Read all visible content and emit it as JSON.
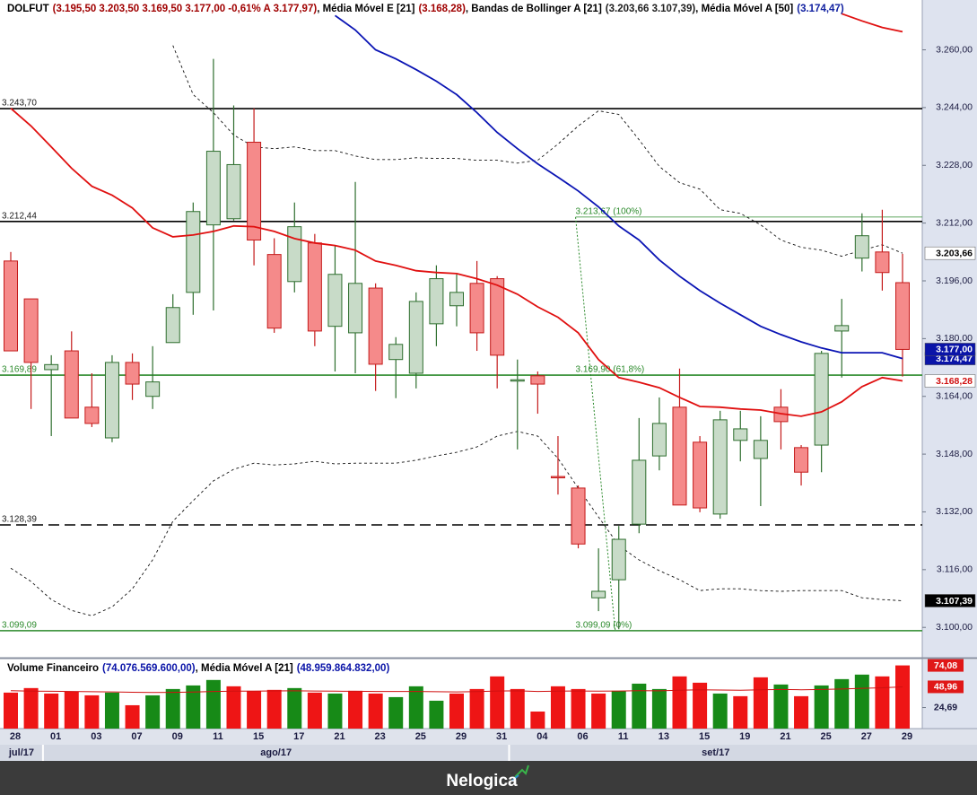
{
  "chart_data": [
    {
      "type": "candlestick",
      "title": "DOLFUT",
      "quote": "(3.195,50 3.203,50 3.169,50 3.177,00 -0,61% A 3.177,97)",
      "legend_separator": ", ",
      "categories": [
        "28",
        null,
        "01",
        null,
        "03",
        null,
        "07",
        null,
        "09",
        null,
        "11",
        null,
        "15",
        null,
        "17",
        null,
        "21",
        null,
        "23",
        null,
        "25",
        null,
        "29",
        null,
        "31",
        null,
        "04",
        null,
        "06",
        null,
        "11",
        null,
        "13",
        null,
        "15",
        null,
        "19",
        null,
        "21",
        null,
        "25",
        null,
        "27",
        null,
        "29"
      ],
      "months": [
        "jul/17",
        "ago/17",
        "set/17"
      ],
      "open": [
        3201.5,
        3191,
        3171.4,
        3176.6,
        3161,
        3152.5,
        3173.4,
        3164,
        3178.9,
        3192.8,
        3211.5,
        3213.2,
        3234.4,
        3203.3,
        3195.8,
        3206.5,
        3183.4,
        3181.6,
        3194,
        3174.2,
        3170.4,
        3184.1,
        3189.1,
        3195.3,
        3196.6,
        3168.4,
        3169.7,
        3141.8,
        3138.6,
        3108.2,
        3113.2,
        3128.6,
        3147.5,
        3161,
        3151.3,
        3131.4,
        3151.8,
        3146.8,
        3161,
        3149.8,
        3150.5,
        3182.1,
        3202.3,
        3204,
        3195.5
      ],
      "high": [
        3204,
        3191,
        3175.4,
        3182,
        3170.4,
        3175.4,
        3175.9,
        3177.9,
        3192.3,
        3217.7,
        3257.5,
        3244.6,
        3243.8,
        3207.8,
        3217.7,
        3209,
        3205.8,
        3223.4,
        3195.3,
        3180.4,
        3192.8,
        3200.3,
        3197.8,
        3201.5,
        3197.3,
        3174.2,
        3170.9,
        3153,
        3139.3,
        3121.9,
        3128.1,
        3158,
        3163.7,
        3171.7,
        3153,
        3160,
        3160,
        3158.5,
        3166,
        3150.5,
        3176.6,
        3191,
        3214.7,
        3215.7,
        3203.5
      ],
      "low": [
        3176.6,
        3160.5,
        3153,
        3158,
        3155.5,
        3151.3,
        3163,
        3160.5,
        3178.9,
        3186.6,
        3187.8,
        3212.7,
        3200.3,
        3181.6,
        3192.8,
        3177.9,
        3170.9,
        3170.4,
        3165.5,
        3163.5,
        3166.2,
        3177.9,
        3183.4,
        3176.6,
        3166.2,
        3149.3,
        3159.2,
        3136.8,
        3121.9,
        3104.5,
        3099.5,
        3126.1,
        3143.5,
        3133.9,
        3131.9,
        3130.1,
        3146,
        3133.6,
        3149.3,
        3139.3,
        3143,
        3169.2,
        3198.6,
        3193.3,
        3169.5
      ],
      "close": [
        3176.6,
        3173.4,
        3172.8,
        3158,
        3156.5,
        3173.4,
        3167.4,
        3168,
        3188.6,
        3215.2,
        3231.9,
        3228.2,
        3207.3,
        3182.9,
        3211,
        3182.1,
        3197.8,
        3195.3,
        3172.9,
        3178.4,
        3190.3,
        3196.6,
        3192.8,
        3181.6,
        3175.4,
        3168.6,
        3167.4,
        3141.6,
        3123.1,
        3110,
        3124.4,
        3146.3,
        3156.5,
        3133.9,
        3133.1,
        3157.5,
        3155,
        3151.8,
        3157,
        3143,
        3175.9,
        3183.6,
        3208.5,
        3198.3,
        3177
      ],
      "up_fill": "#c8dbc8",
      "up_stroke": "#2e6e2e",
      "down_fill": "#f58a8a",
      "down_stroke": "#c41a1a",
      "close_label": "3.177,00",
      "close_badge_bg": "#0a14a8",
      "close_badge_fg": "#ffffff",
      "series": [
        {
          "name": "Média Móvel E [21]",
          "legend_value": "(3.168,28)",
          "legend_color": "#a00000",
          "color": "#e01010",
          "dash": false,
          "values": [
            3243.8,
            3238.9,
            3233.1,
            3227.2,
            3222.2,
            3219.7,
            3216.2,
            3210.7,
            3208.2,
            3208.7,
            3209.7,
            3211.2,
            3211,
            3209.7,
            3207.7,
            3206.5,
            3205.8,
            3204.5,
            3201.5,
            3200.3,
            3198.8,
            3198.3,
            3198,
            3196.6,
            3194.8,
            3192.3,
            3188.8,
            3185.9,
            3181.6,
            3174.2,
            3169.2,
            3167.9,
            3166.4,
            3163.7,
            3161.2,
            3161,
            3160.5,
            3160.2,
            3159.2,
            3158.5,
            3159.7,
            3162.5,
            3166.7,
            3169.2,
            3168.28
          ],
          "last_label": "3.168,28",
          "badge_bg": "#ffffff",
          "badge_fg": "#d01010"
        },
        {
          "name": "Bandas de Bollinger A [21]",
          "legend_value": "(3.203,66 3.107,39)",
          "legend_color": "#202020",
          "color": "#111111",
          "dash": true,
          "values": [
            null,
            null,
            null,
            null,
            null,
            null,
            null,
            null,
            3261.2,
            3247.6,
            3242.6,
            3236.4,
            3233.1,
            3232.6,
            3233.1,
            3232.1,
            3232.1,
            3230.6,
            3229.6,
            3229.6,
            3230.1,
            3229.9,
            3229.9,
            3229.4,
            3229.4,
            3228.6,
            3229.4,
            3233.9,
            3238.9,
            3243.1,
            3242.1,
            3235.1,
            3227.7,
            3223.2,
            3221.4,
            3215.7,
            3214.7,
            3211.5,
            3207.3,
            3205.3,
            3204.5,
            3202.8,
            3204.5,
            3206,
            3203.66
          ],
          "last_label": "3.203,66",
          "badge_bg": "#ffffff",
          "badge_fg": "#000000"
        },
        {
          "color": "#111111",
          "dash": true,
          "values": [
            3116.4,
            3112.7,
            3107.7,
            3104.7,
            3103.2,
            3105.7,
            3110.7,
            3118.7,
            3129.4,
            3135.1,
            3140.6,
            3143.8,
            3145.5,
            3145,
            3145.3,
            3146,
            3145.3,
            3145.5,
            3145.5,
            3145.5,
            3146.3,
            3147.5,
            3148.5,
            3150,
            3153,
            3154.3,
            3153,
            3146.8,
            3138.6,
            3130.6,
            3122.7,
            3118.7,
            3115.7,
            3113.2,
            3110.2,
            3110.7,
            3110.7,
            3110.2,
            3110,
            3110.2,
            3110.2,
            3110.2,
            3108.2,
            3107.7,
            3107.39
          ],
          "last_label": "3.107,39",
          "badge_bg": "#000000",
          "badge_fg": "#ffffff"
        },
        {
          "name": "Média Móvel A [50]",
          "legend_value": "(3.174,47)",
          "legend_color": "#1020a0",
          "color": "#0a14b4",
          "dash": false,
          "values": [
            null,
            null,
            null,
            null,
            null,
            null,
            null,
            null,
            null,
            null,
            null,
            null,
            null,
            null,
            null,
            null,
            3269.5,
            3265.5,
            3260,
            3257.5,
            3254.5,
            3251.3,
            3247.6,
            3242.6,
            3237.1,
            3232.6,
            3228.4,
            3224.7,
            3220.9,
            3216.5,
            3211.2,
            3207.3,
            3201.8,
            3197.3,
            3193.3,
            3189.8,
            3186.6,
            3183.4,
            3181.1,
            3179.1,
            3177.4,
            3176.1,
            3176.1,
            3176.1,
            3174.47
          ],
          "last_label": "3.174,47",
          "badge_bg": "#0a14a8",
          "badge_fg": "#ffffff"
        },
        {
          "color": "#e01010",
          "dash": false,
          "values": [
            null,
            null,
            null,
            null,
            null,
            null,
            null,
            null,
            null,
            null,
            null,
            null,
            null,
            null,
            null,
            null,
            null,
            null,
            null,
            null,
            null,
            null,
            null,
            null,
            null,
            null,
            null,
            null,
            null,
            null,
            null,
            null,
            null,
            null,
            null,
            null,
            null,
            null,
            null,
            null,
            null,
            3270,
            3268,
            3266.2,
            3265
          ]
        }
      ],
      "levels": [
        {
          "value": 3243.7,
          "label": "3.243,70",
          "color": "#000000",
          "dash": false
        },
        {
          "value": 3212.44,
          "label": "3.212,44",
          "color": "#000000",
          "dash": false
        },
        {
          "value": 3169.89,
          "label": "3.169,89",
          "color": "#2b8a2b",
          "dash": false
        },
        {
          "value": 3128.39,
          "label": "3.128,39",
          "color": "#000000",
          "dash": true
        },
        {
          "value": 3099.09,
          "label": "3.099,09",
          "color": "#2b8a2b",
          "dash": false
        }
      ],
      "fibonacci": [
        {
          "value": 3213.67,
          "label": "3.213,67 (100%)"
        },
        {
          "value": 3169.9,
          "label": "3.169,90 (61,8%)"
        },
        {
          "value": 3099.09,
          "label": "3.099,09 (0%)"
        }
      ],
      "fib_color": "#2b8a2b",
      "ylim": [
        3091.6,
        3273.8
      ],
      "yticks": [
        {
          "value": 3260,
          "label": "3.260,00"
        },
        {
          "value": 3244,
          "label": "3.244,00"
        },
        {
          "value": 3228,
          "label": "3.228,00"
        },
        {
          "value": 3212,
          "label": "3.212,00"
        },
        {
          "value": 3196,
          "label": "3.196,00"
        },
        {
          "value": 3180,
          "label": "3.180,00"
        },
        {
          "value": 3164,
          "label": "3.164,00"
        },
        {
          "value": 3148,
          "label": "3.148,00"
        },
        {
          "value": 3132,
          "label": "3.132,00"
        },
        {
          "value": 3116,
          "label": "3.116,00"
        },
        {
          "value": 3100,
          "label": "3.100,00"
        }
      ]
    },
    {
      "type": "bar",
      "series": [
        {
          "name": "Volume Financeiro",
          "legend_value": "(74.076.569.600,00)",
          "legend_color": "#0a14a8",
          "values": [
            42.2,
            47.5,
            41.1,
            43.2,
            39,
            42.2,
            27.4,
            39,
            46.4,
            50.6,
            57,
            49.6,
            44.3,
            45.4,
            47.5,
            42.2,
            41.1,
            44.3,
            41.1,
            36.9,
            49.6,
            32.7,
            41.1,
            46.4,
            61.2,
            46.4,
            20,
            49.6,
            46.4,
            41.1,
            44.3,
            52.7,
            46.4,
            61.2,
            53.8,
            41.1,
            38,
            60.1,
            51.7,
            38,
            50.6,
            58,
            63.3,
            61.2,
            74.08
          ],
          "colors": [
            "#ee1515",
            "#ee1515",
            "#ee1515",
            "#ee1515",
            "#ee1515",
            "#178a17",
            "#ee1515",
            "#178a17",
            "#178a17",
            "#178a17",
            "#178a17",
            "#ee1515",
            "#ee1515",
            "#ee1515",
            "#178a17",
            "#ee1515",
            "#178a17",
            "#ee1515",
            "#ee1515",
            "#178a17",
            "#178a17",
            "#178a17",
            "#ee1515",
            "#ee1515",
            "#ee1515",
            "#ee1515",
            "#ee1515",
            "#ee1515",
            "#ee1515",
            "#ee1515",
            "#178a17",
            "#178a17",
            "#178a17",
            "#ee1515",
            "#ee1515",
            "#178a17",
            "#ee1515",
            "#ee1515",
            "#178a17",
            "#ee1515",
            "#178a17",
            "#178a17",
            "#178a17",
            "#ee1515",
            "#ee1515"
          ],
          "last_label": "74,08",
          "badge_bg": "#e01818",
          "badge_fg": "#ffffff"
        },
        {
          "name": "Média Móvel A [21]",
          "legend_value": "(48.959.864.832,00)",
          "legend_color": "#0a14a8",
          "color": "#d01010",
          "values": [
            44.5,
            44,
            43.8,
            43.5,
            43.2,
            43,
            42.6,
            42.4,
            42.5,
            42.9,
            43.6,
            43.9,
            44,
            44.2,
            44.3,
            44.1,
            43.9,
            43.8,
            43.6,
            43.5,
            43.6,
            43.2,
            43,
            43.3,
            44.1,
            44.3,
            43.6,
            43.9,
            44.1,
            44,
            44.1,
            44.4,
            44.3,
            45,
            45.4,
            45.2,
            44.9,
            45.5,
            45.9,
            45.6,
            45.9,
            46.4,
            47.2,
            47.9,
            48.96
          ],
          "last_label": "48,96",
          "badge_bg": "#e01818",
          "badge_fg": "#ffffff"
        }
      ],
      "ylim": [
        0,
        81
      ],
      "yticks": [
        {
          "value": 24.69,
          "label": "24,69"
        }
      ]
    }
  ],
  "brand": "Nelogica"
}
